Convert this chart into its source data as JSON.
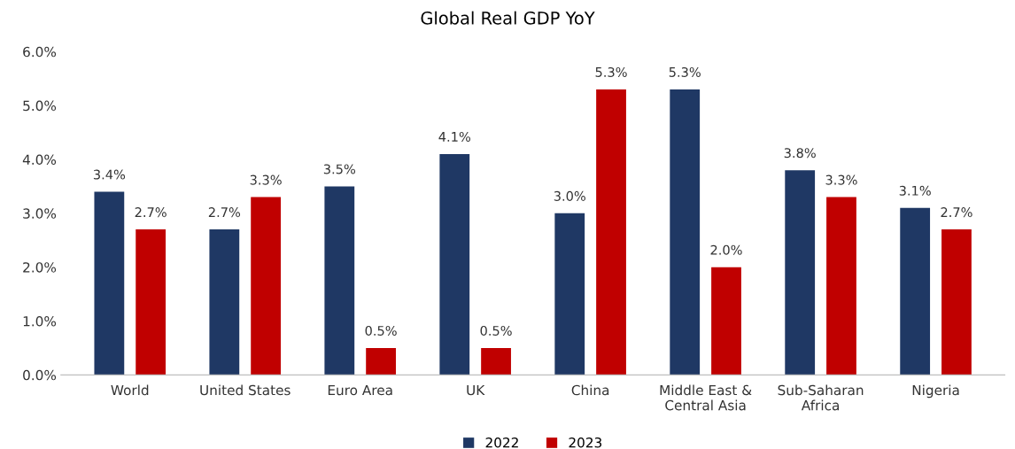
{
  "chart_data": {
    "type": "bar",
    "title": "Global Real GDP YoY",
    "categories": [
      "World",
      "United States",
      "Euro Area",
      "UK",
      "China",
      "Middle East &\nCentral Asia",
      "Sub-Saharan\nAfrica",
      "Nigeria"
    ],
    "series": [
      {
        "name": "2022",
        "color": "#1f3864",
        "values": [
          3.4,
          2.7,
          3.5,
          4.1,
          3.0,
          5.3,
          3.8,
          3.1
        ],
        "value_labels": [
          "3.4%",
          "2.7%",
          "3.5%",
          "4.1%",
          "3.0%",
          "5.3%",
          "3.8%",
          "3.1%"
        ]
      },
      {
        "name": "2023",
        "color": "#c00000",
        "values": [
          2.7,
          3.3,
          0.5,
          0.5,
          5.3,
          2.0,
          3.3,
          2.7
        ],
        "value_labels": [
          "2.7%",
          "3.3%",
          "0.5%",
          "0.5%",
          "5.3%",
          "2.0%",
          "3.3%",
          "2.7%"
        ]
      }
    ],
    "ylim": [
      0,
      6
    ],
    "yticks": [
      {
        "value": 0,
        "label": "0.0%"
      },
      {
        "value": 1,
        "label": "1.0%"
      },
      {
        "value": 2,
        "label": "2.0%"
      },
      {
        "value": 3,
        "label": "3.0%"
      },
      {
        "value": 4,
        "label": "4.0%"
      },
      {
        "value": 5,
        "label": "5.0%"
      },
      {
        "value": 6,
        "label": "6.0%"
      }
    ],
    "grid": false,
    "legend": "bottom"
  }
}
